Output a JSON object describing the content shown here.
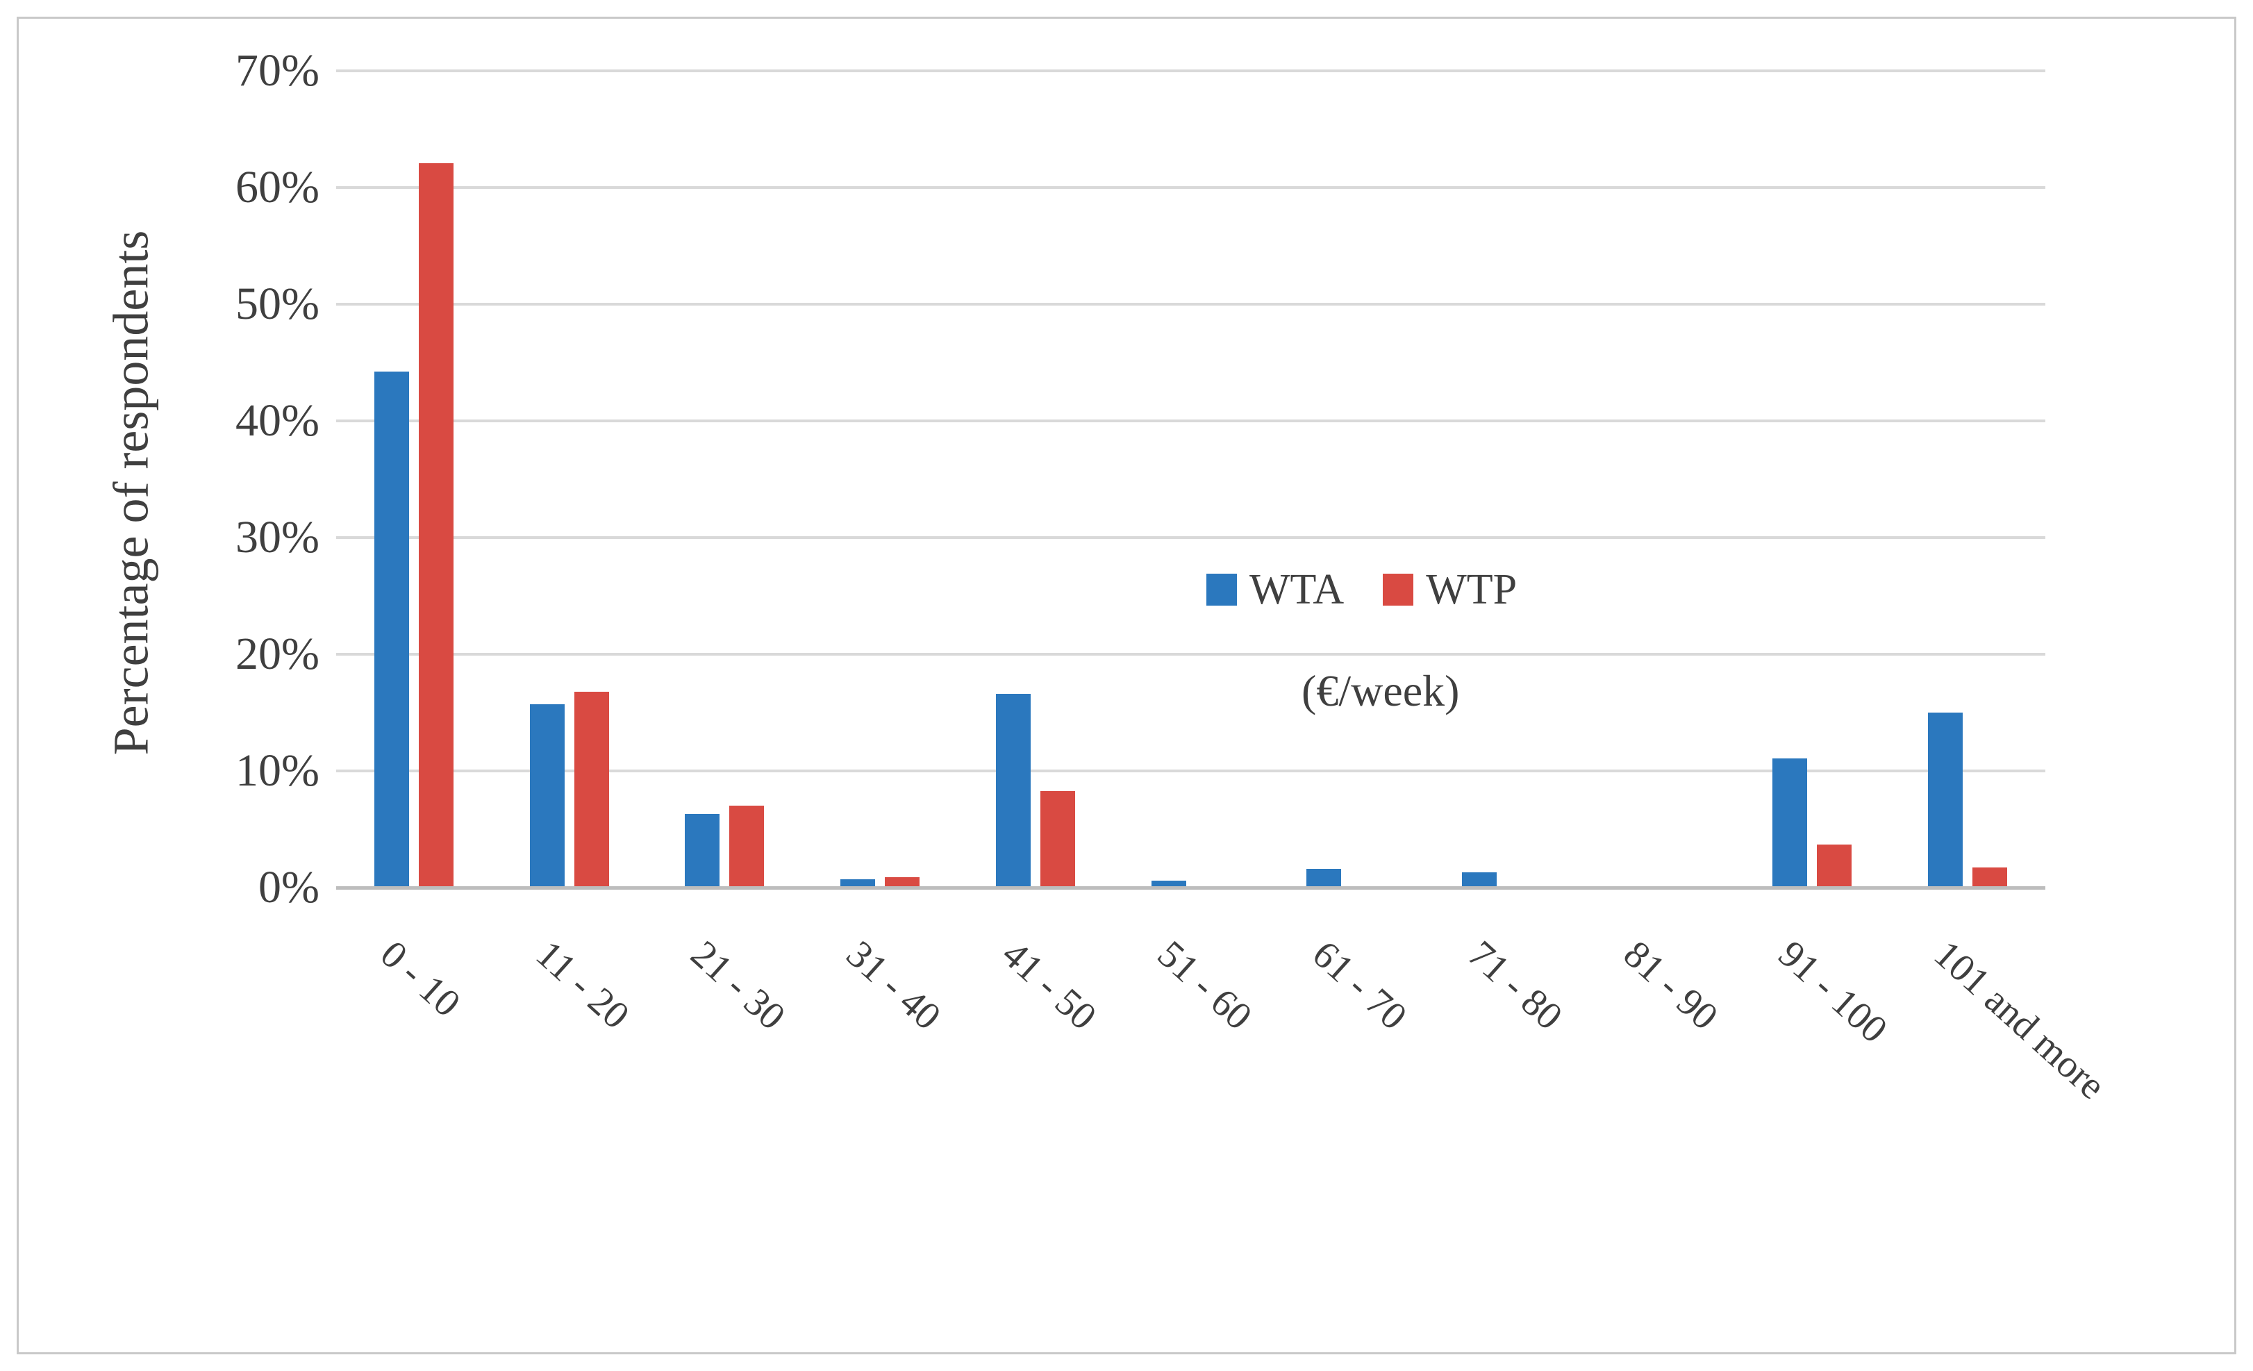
{
  "chart_data": {
    "type": "bar",
    "title": "",
    "categories": [
      "0 - 10",
      "11 - 20",
      "21 - 30",
      "31 - 40",
      "41 - 50",
      "51 - 60",
      "61 - 70",
      "71 - 80",
      "81 - 90",
      "91 - 100",
      "101 and more"
    ],
    "series": [
      {
        "name": "WTA",
        "color": "#2b78be",
        "values": [
          44.2,
          15.7,
          6.3,
          0.7,
          16.6,
          0.6,
          1.6,
          1.3,
          0,
          11.1,
          15.0
        ]
      },
      {
        "name": "WTP",
        "color": "#d94a42",
        "values": [
          62.1,
          16.8,
          7.0,
          0.9,
          8.3,
          0,
          0,
          0,
          0,
          3.7,
          1.7
        ]
      }
    ],
    "xlabel": "",
    "ylabel": "Percentage of respondents",
    "x_unit_note": "(€/week)",
    "y_ticks": [
      "0%",
      "10%",
      "20%",
      "30%",
      "40%",
      "50%",
      "60%",
      "70%"
    ],
    "ylim": [
      0,
      70
    ],
    "grid": true,
    "legend_position": "inside-center-right"
  },
  "colors": {
    "wta": "#2b78be",
    "wtp": "#d94a42",
    "gridline": "#d9d9d9",
    "axis_line": "#bdbdbd",
    "text": "#3f3f3f",
    "frame_border": "#c9c9c9",
    "background": "#ffffff"
  }
}
